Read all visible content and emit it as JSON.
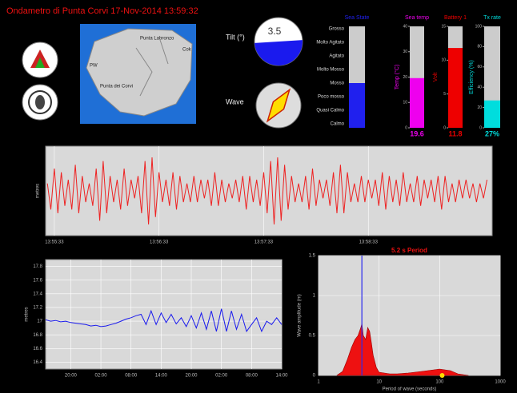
{
  "header": {
    "title": "Ondametro di Punta Corvi  17-Nov-2014 13:59:32"
  },
  "map": {
    "labels": [
      "Punta Labronzo",
      "Cok",
      "PW",
      "Punta dei Corvi"
    ]
  },
  "gauges": {
    "tilt": {
      "label": "Tilt (°)",
      "value": 3.5
    },
    "wave": {
      "label": "Wave"
    }
  },
  "chart_data": [
    {
      "type": "level",
      "title": "Sea State",
      "categories": [
        "Calmo",
        "Quasi Calmo",
        "Poco mosso",
        "Mosso",
        "Molto Mosso",
        "Agitato",
        "Molto Agitato",
        "Grosso"
      ],
      "value": 3,
      "color": "#2020ee"
    },
    {
      "type": "gauge",
      "title": "Sea temp",
      "ylabel": "Temp (°C)",
      "value": 19.6,
      "ylim": [
        0,
        40
      ],
      "yticks": [
        0,
        10,
        20,
        30,
        40
      ],
      "color": "#ee00ee"
    },
    {
      "type": "gauge",
      "title": "Battery 1",
      "ylabel": "Volt",
      "value": 11.8,
      "ylim": [
        0,
        15
      ],
      "yticks": [
        0,
        5,
        10,
        15
      ],
      "color": "#ee0000"
    },
    {
      "type": "gauge",
      "title": "Tx rate",
      "ylabel": "Efficiency (%)",
      "value": 27,
      "value_labels": [
        "27%"
      ],
      "ylim": [
        0,
        100
      ],
      "yticks": [
        0,
        20,
        40,
        60,
        80,
        100
      ],
      "color": "#00dddd"
    },
    {
      "type": "line",
      "ylabel": "metres",
      "color": "#ee2222",
      "grid": true,
      "x": [
        -4,
        -2,
        0,
        2,
        4,
        6,
        8,
        10,
        12,
        14,
        16,
        18,
        20,
        22,
        24,
        26,
        28,
        30,
        32,
        34,
        36,
        38,
        40,
        42,
        44,
        46,
        48,
        50,
        52,
        54,
        56,
        58,
        60,
        62,
        64,
        66,
        68,
        70,
        72,
        74,
        76,
        78,
        80,
        82,
        84,
        86,
        88,
        90,
        92,
        94,
        96,
        98,
        100,
        102,
        104,
        106,
        108,
        110,
        112,
        114,
        116,
        118,
        120,
        122,
        124,
        126,
        128,
        130,
        132,
        134,
        136,
        138,
        140,
        142,
        144,
        146,
        148,
        150,
        152,
        154,
        156,
        158,
        160,
        162,
        164,
        166,
        168,
        170,
        172,
        174,
        176,
        178,
        180,
        182,
        184,
        186,
        188,
        190,
        192,
        194,
        196,
        198,
        200,
        202,
        204,
        206,
        208,
        210,
        212,
        214,
        216,
        218,
        220,
        222,
        224,
        226,
        228,
        230,
        232,
        234,
        236,
        238,
        240,
        242,
        244,
        246,
        248
      ],
      "values": [
        0.2,
        -0.5,
        0.6,
        -0.6,
        0.5,
        -0.4,
        0.3,
        -0.5,
        0.7,
        -0.6,
        0.4,
        -0.3,
        0.2,
        -0.4,
        0.6,
        -0.8,
        0.8,
        -0.6,
        0.4,
        -0.3,
        0.3,
        -0.5,
        0.6,
        -0.4,
        0.3,
        -0.2,
        0.4,
        -0.6,
        0.8,
        -0.9,
        0.9,
        -0.7,
        0.5,
        -0.3,
        0.3,
        -0.4,
        0.5,
        -0.5,
        0.4,
        -0.3,
        0.2,
        -0.3,
        0.4,
        -0.3,
        0.3,
        -0.2,
        0.3,
        -0.4,
        0.5,
        -0.4,
        0.3,
        -0.3,
        0.2,
        -0.2,
        0.3,
        -0.3,
        0.4,
        -0.5,
        0.4,
        -0.3,
        0.3,
        -0.4,
        0.5,
        -0.6,
        0.8,
        -0.9,
        0.9,
        -0.8,
        0.7,
        -0.5,
        0.4,
        -0.3,
        0.2,
        -0.3,
        0.4,
        -0.5,
        0.6,
        -0.4,
        0.3,
        -0.2,
        0.3,
        -0.4,
        0.5,
        -0.6,
        0.7,
        -0.6,
        0.5,
        -0.3,
        0.2,
        -0.3,
        0.4,
        -0.3,
        0.3,
        -0.2,
        0.3,
        -0.4,
        0.5,
        -0.5,
        0.4,
        -0.3,
        0.3,
        -0.4,
        0.5,
        -0.3,
        0.2,
        -0.3,
        0.4,
        -0.4,
        0.3,
        -0.2,
        0.3,
        -0.3,
        0.4,
        -0.5,
        0.4,
        -0.3,
        0.2,
        -0.3,
        0.3,
        -0.2,
        0.3,
        -0.2,
        0.2,
        -0.3,
        0.2,
        -0.2,
        0.3
      ],
      "xlim": [
        -5,
        251
      ],
      "ylim": [
        -1.2,
        1.2
      ],
      "xticks": [
        {
          "value": 0,
          "label": "13:55:33"
        },
        {
          "value": 60,
          "label": "13:56:33"
        },
        {
          "value": 120,
          "label": "13:57:33"
        },
        {
          "value": 180,
          "label": "13:58:33"
        }
      ]
    },
    {
      "type": "line",
      "ylabel": "metres",
      "color": "#1a1aee",
      "grid": true,
      "x": [
        -5,
        -4,
        -3,
        -2,
        -1,
        0,
        1,
        2,
        3,
        4,
        5,
        6,
        7,
        8,
        9,
        10,
        11,
        12,
        13,
        14,
        15,
        16,
        17,
        18,
        19,
        20,
        21,
        22,
        23,
        24,
        25,
        26,
        27,
        28,
        29,
        30,
        31,
        32,
        33,
        34,
        35,
        36,
        37,
        38,
        39,
        40,
        41,
        42
      ],
      "values": [
        17.02,
        17.0,
        17.01,
        16.99,
        17.0,
        16.98,
        16.97,
        16.96,
        16.95,
        16.93,
        16.94,
        16.92,
        16.93,
        16.95,
        16.97,
        17.0,
        17.03,
        17.05,
        17.08,
        17.1,
        16.95,
        17.15,
        16.95,
        17.12,
        16.98,
        17.1,
        16.96,
        17.05,
        16.92,
        17.08,
        16.9,
        17.12,
        16.88,
        17.15,
        16.85,
        17.18,
        16.85,
        17.15,
        16.88,
        17.1,
        16.85,
        16.95,
        17.05,
        16.85,
        17.0,
        16.95,
        17.05,
        16.95
      ],
      "xlim": [
        -5,
        42
      ],
      "ylim": [
        16.3,
        17.9
      ],
      "yticks": [
        16.4,
        16.6,
        16.8,
        17,
        17.2,
        17.4,
        17.6,
        17.8
      ],
      "xticks": [
        {
          "value": 0,
          "label": "20:00"
        },
        {
          "value": 6,
          "label": "02:00"
        },
        {
          "value": 12,
          "label": "08:00"
        },
        {
          "value": 18,
          "label": "14:00"
        },
        {
          "value": 24,
          "label": "20:00"
        },
        {
          "value": 30,
          "label": "02:00"
        },
        {
          "value": 36,
          "label": "08:00"
        },
        {
          "value": 42,
          "label": "14:00"
        }
      ]
    },
    {
      "type": "area",
      "title": "5.2 s Period",
      "peak_period": 5.2,
      "marker": [
        110,
        0
      ],
      "xlabel": "Period of wave (seconds)",
      "ylabel": "Wave amplitude (m)",
      "color": "#ee1111",
      "log_x": true,
      "grid": true,
      "x": [
        2,
        2.5,
        3,
        3.5,
        4,
        4.5,
        5,
        5.2,
        5.5,
        6,
        6.5,
        7,
        7.5,
        8,
        9,
        10,
        15,
        20,
        30,
        50,
        80,
        100,
        150,
        200,
        300
      ],
      "values": [
        0,
        0.05,
        0.2,
        0.35,
        0.45,
        0.5,
        0.6,
        0.65,
        0.5,
        0.45,
        0.6,
        0.55,
        0.4,
        0.25,
        0.1,
        0.04,
        0.02,
        0.02,
        0.03,
        0.05,
        0.07,
        0.08,
        0.06,
        0.02,
        0
      ],
      "xlim": [
        1,
        1000
      ],
      "ylim": [
        0,
        1.5
      ],
      "xticks": [
        1,
        10,
        100,
        1000
      ],
      "yticks": [
        0,
        0.5,
        1,
        1.5
      ]
    }
  ]
}
